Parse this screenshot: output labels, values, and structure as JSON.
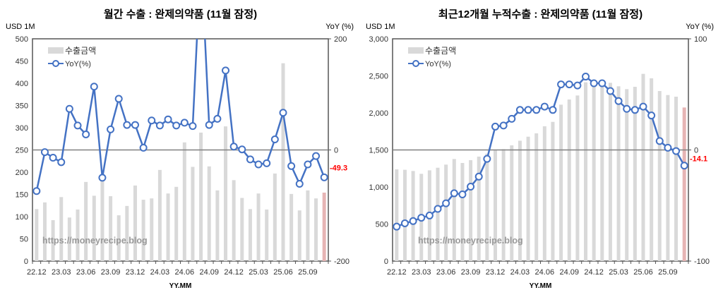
{
  "chart_data": [
    {
      "type": "bar+line",
      "title": "월간 수출 : 완제의약품 (11월 잠정)",
      "ylabel_left": "USD 1M",
      "ylabel_right": "YoY (%)",
      "xlabel": "YY.MM",
      "watermark": "https://moneyrecipe.blog",
      "ylim_left": [
        0,
        500
      ],
      "yticks_left": [
        0,
        50,
        100,
        150,
        200,
        250,
        300,
        350,
        400,
        450,
        500
      ],
      "ylim_right": [
        -200,
        200
      ],
      "yticks_right": [
        -200,
        0,
        200
      ],
      "legend": {
        "bar": "수출금액",
        "line": "YoY(%)",
        "placement": "top-left"
      },
      "categories": [
        "22.12",
        "23.01",
        "23.02",
        "23.03",
        "23.04",
        "23.05",
        "23.06",
        "23.07",
        "23.08",
        "23.09",
        "23.10",
        "23.11",
        "23.12",
        "24.01",
        "24.02",
        "24.03",
        "24.04",
        "24.05",
        "24.06",
        "24.07",
        "24.08",
        "24.09",
        "24.10",
        "24.11",
        "24.12",
        "25.01",
        "25.02",
        "25.03",
        "25.04",
        "25.05",
        "25.06",
        "25.07",
        "25.08",
        "25.09",
        "25.10",
        "25.11"
      ],
      "xtick_labels": [
        "22.12",
        "23.03",
        "23.06",
        "23.09",
        "23.12",
        "24.03",
        "24.06",
        "24.09",
        "24.12",
        "25.03",
        "25.06",
        "25.09"
      ],
      "bar_values": [
        117,
        132,
        92,
        144,
        98,
        116,
        178,
        147,
        185,
        146,
        103,
        124,
        170,
        138,
        141,
        205,
        152,
        167,
        267,
        212,
        289,
        213,
        159,
        303,
        182,
        142,
        117,
        152,
        116,
        197,
        445,
        151,
        114,
        159,
        141,
        154
      ],
      "line_values": [
        -74,
        -4,
        -14,
        -22,
        74,
        44,
        28,
        114,
        -50,
        37,
        92,
        45,
        45,
        4,
        53,
        44,
        55,
        44,
        49,
        43,
        350,
        45,
        56,
        143,
        6,
        1,
        -17,
        -26,
        -24,
        19,
        67,
        -29,
        -61,
        -26,
        -11,
        -49.3
      ],
      "last_label": "-49.3",
      "colors": {
        "bar": "#d9d9d9",
        "bar_last": "#e6b4b4",
        "line": "#4472c4",
        "last_label": "#ff0000"
      }
    },
    {
      "type": "bar+line",
      "title": "최근12개월 누적수출 : 완제의약품 (11월 잠정)",
      "ylabel_left": "USD 1M",
      "ylabel_right": "YoY (%)",
      "xlabel": "YY.MM",
      "watermark": "https://moneyrecipe.blog",
      "ylim_left": [
        0,
        3000
      ],
      "yticks_left": [
        0,
        500,
        1000,
        1500,
        2000,
        2500,
        3000
      ],
      "ylim_right": [
        -100,
        100
      ],
      "yticks_right": [
        -100,
        0,
        100
      ],
      "legend": {
        "bar": "수출금액",
        "line": "YoY(%)",
        "placement": "top-left"
      },
      "categories": [
        "22.12",
        "23.01",
        "23.02",
        "23.03",
        "23.04",
        "23.05",
        "23.06",
        "23.07",
        "23.08",
        "23.09",
        "23.10",
        "23.11",
        "23.12",
        "24.01",
        "24.02",
        "24.03",
        "24.04",
        "24.05",
        "24.06",
        "24.07",
        "24.08",
        "24.09",
        "24.10",
        "24.11",
        "24.12",
        "25.01",
        "25.02",
        "25.03",
        "25.04",
        "25.05",
        "25.06",
        "25.07",
        "25.08",
        "25.09",
        "25.10",
        "25.11"
      ],
      "xtick_labels": [
        "22.12",
        "23.03",
        "23.06",
        "23.09",
        "23.12",
        "24.03",
        "24.06",
        "24.09",
        "24.12",
        "25.03",
        "25.06",
        "25.09"
      ],
      "bar_values": [
        1238,
        1232,
        1216,
        1178,
        1225,
        1260,
        1302,
        1378,
        1324,
        1362,
        1410,
        1450,
        1500,
        1511,
        1562,
        1625,
        1679,
        1724,
        1819,
        1879,
        2111,
        2181,
        2235,
        2413,
        2380,
        2380,
        2406,
        2359,
        2321,
        2352,
        2527,
        2467,
        2295,
        2241,
        2219,
        2073
      ],
      "line_values": [
        -69,
        -66,
        -64,
        -61,
        -59,
        -53,
        -48,
        -39,
        -40,
        -33,
        -24,
        -8,
        21,
        22,
        28,
        36,
        36,
        36,
        39,
        36,
        59,
        59,
        58,
        66,
        60,
        60,
        53,
        44,
        37,
        36,
        39,
        31,
        8,
        2,
        -1,
        -14.1
      ],
      "last_label": "-14.1",
      "colors": {
        "bar": "#d9d9d9",
        "bar_last": "#e6b4b4",
        "line": "#4472c4",
        "last_label": "#ff0000"
      }
    }
  ]
}
